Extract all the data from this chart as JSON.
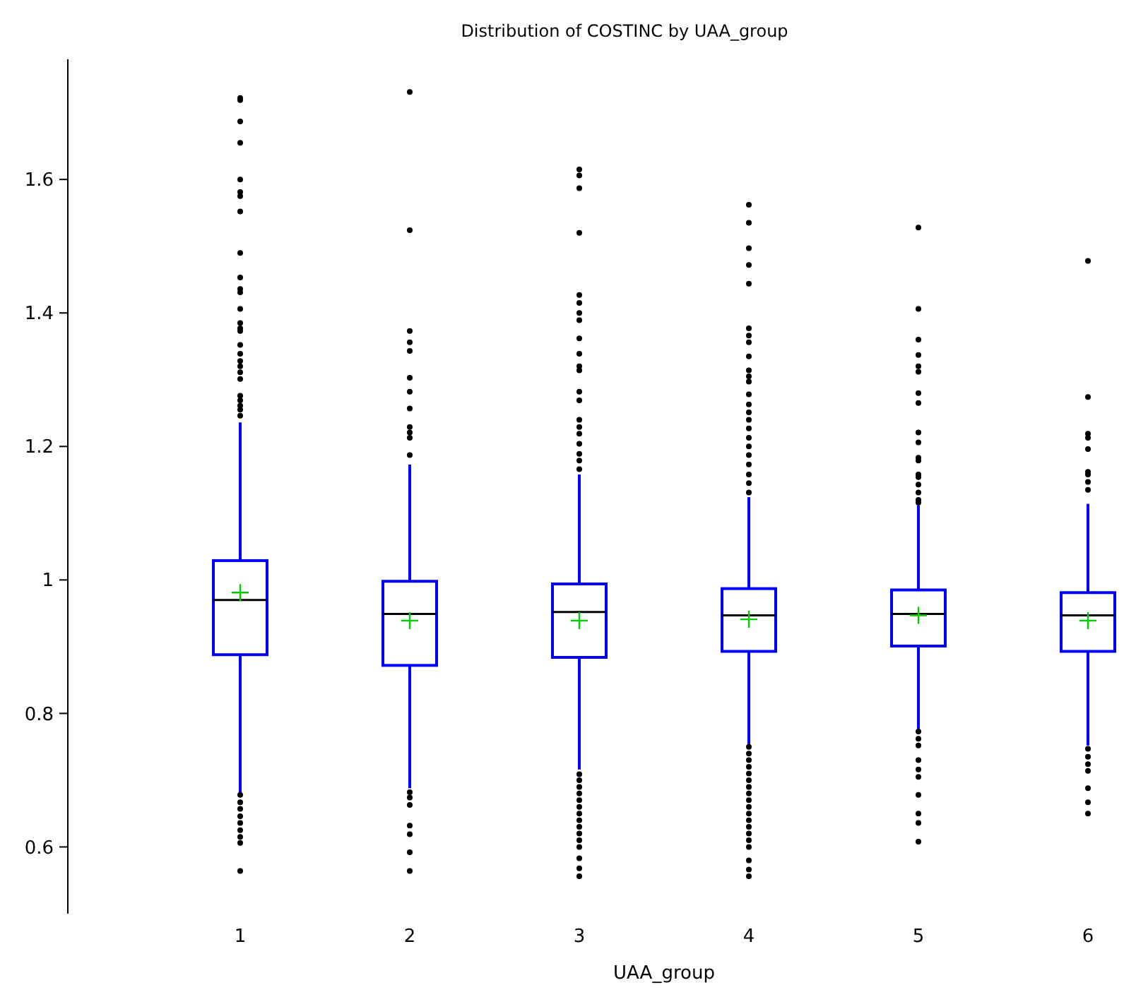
{
  "chart_data": {
    "type": "box",
    "title": "Distribution of COSTINC by UAA_group",
    "xlabel": "UAA_group",
    "categories": [
      "1",
      "2",
      "3",
      "4",
      "5",
      "6"
    ],
    "ylim": [
      0.5,
      1.78
    ],
    "yticks": [
      {
        "value": 0.6,
        "label": "0.6"
      },
      {
        "value": 0.8,
        "label": "0.8"
      },
      {
        "value": 1,
        "label": "1"
      },
      {
        "value": 1.2,
        "label": "1.2"
      },
      {
        "value": 1.4,
        "label": "1.4"
      },
      {
        "value": 1.6,
        "label": "1.6"
      }
    ],
    "grid": false,
    "series": [
      {
        "color": "#0000ff",
        "boxes": [
          {
            "low": 0.682,
            "q1": 0.888,
            "median": 0.97,
            "q3": 1.029,
            "high": 1.236,
            "mean": 0.981,
            "outliers": [
              1.722,
              1.719,
              1.687,
              1.655,
              1.6,
              1.581,
              1.575,
              1.552,
              1.49,
              1.453,
              1.436,
              1.431,
              1.406,
              1.385,
              1.377,
              1.373,
              1.352,
              1.339,
              1.328,
              1.32,
              1.311,
              1.301,
              1.276,
              1.269,
              1.261,
              1.255,
              1.246,
              0.678,
              0.667,
              0.657,
              0.646,
              0.636,
              0.625,
              0.615,
              0.606,
              0.564
            ]
          },
          {
            "low": 0.688,
            "q1": 0.872,
            "median": 0.949,
            "q3": 0.998,
            "high": 1.173,
            "mean": 0.939,
            "outliers": [
              1.731,
              1.524,
              1.373,
              1.356,
              1.343,
              1.303,
              1.282,
              1.257,
              1.229,
              1.221,
              1.213,
              1.187,
              0.682,
              0.674,
              0.663,
              0.632,
              0.619,
              0.592,
              0.564
            ]
          },
          {
            "low": 0.716,
            "q1": 0.884,
            "median": 0.952,
            "q3": 0.994,
            "high": 1.158,
            "mean": 0.939,
            "outliers": [
              1.615,
              1.606,
              1.587,
              1.52,
              1.427,
              1.415,
              1.4,
              1.389,
              1.362,
              1.339,
              1.32,
              1.314,
              1.282,
              1.269,
              1.24,
              1.229,
              1.219,
              1.204,
              1.189,
              1.179,
              1.166,
              0.709,
              0.7,
              0.69,
              0.68,
              0.67,
              0.66,
              0.65,
              0.64,
              0.63,
              0.62,
              0.61,
              0.6,
              0.583,
              0.568,
              0.556
            ]
          },
          {
            "low": 0.754,
            "q1": 0.893,
            "median": 0.947,
            "q3": 0.987,
            "high": 1.124,
            "mean": 0.941,
            "outliers": [
              1.562,
              1.535,
              1.497,
              1.472,
              1.444,
              1.377,
              1.366,
              1.356,
              1.335,
              1.314,
              1.305,
              1.297,
              1.278,
              1.263,
              1.251,
              1.24,
              1.227,
              1.213,
              1.2,
              1.187,
              1.173,
              1.158,
              1.145,
              1.131,
              0.75,
              0.74,
              0.73,
              0.72,
              0.71,
              0.7,
              0.69,
              0.68,
              0.67,
              0.66,
              0.65,
              0.64,
              0.63,
              0.62,
              0.61,
              0.6,
              0.58,
              0.566,
              0.556
            ]
          },
          {
            "low": 0.777,
            "q1": 0.901,
            "median": 0.949,
            "q3": 0.985,
            "high": 1.112,
            "mean": 0.947,
            "outliers": [
              1.528,
              1.406,
              1.36,
              1.337,
              1.32,
              1.312,
              1.28,
              1.265,
              1.221,
              1.206,
              1.183,
              1.179,
              1.158,
              1.154,
              1.143,
              1.131,
              1.12,
              1.116,
              0.773,
              0.762,
              0.752,
              0.73,
              0.716,
              0.705,
              0.678,
              0.65,
              0.636,
              0.608
            ]
          },
          {
            "low": 0.752,
            "q1": 0.893,
            "median": 0.947,
            "q3": 0.981,
            "high": 1.114,
            "mean": 0.939,
            "outliers": [
              1.478,
              1.274,
              1.219,
              1.213,
              1.196,
              1.162,
              1.158,
              1.147,
              1.135,
              0.747,
              0.735,
              0.724,
              0.714,
              0.688,
              0.667,
              0.65
            ]
          }
        ]
      }
    ]
  }
}
